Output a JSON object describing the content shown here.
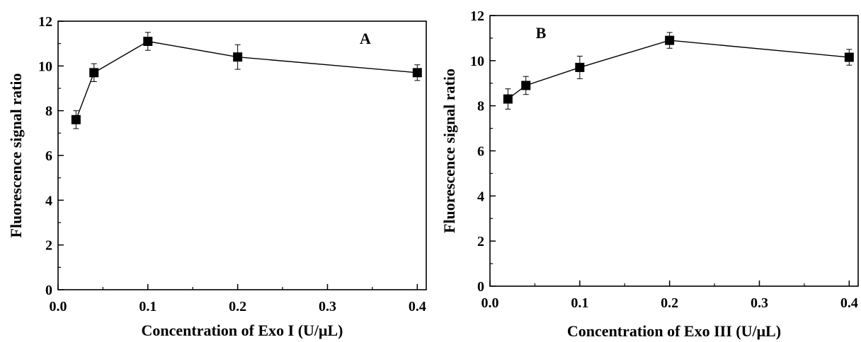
{
  "chart_data": [
    {
      "type": "line",
      "panel_label": "A",
      "xlabel": "Concentration of Exo I (U/μL)",
      "ylabel": "Fluorescence signal ratio",
      "xlim": [
        0.0,
        0.41
      ],
      "ylim": [
        0,
        12
      ],
      "xticks": [
        0.0,
        0.1,
        0.2,
        0.3,
        0.4
      ],
      "xtick_labels": [
        "0.0",
        "0.1",
        "0.2",
        "0.3",
        "0.4"
      ],
      "yticks": [
        0,
        2,
        4,
        6,
        8,
        10,
        12
      ],
      "ytick_labels": [
        "0",
        "2",
        "4",
        "6",
        "8",
        "10",
        "12"
      ],
      "grid": false,
      "marker": "square",
      "series": [
        {
          "x": [
            0.02,
            0.04,
            0.1,
            0.2,
            0.4
          ],
          "y": [
            7.6,
            9.7,
            11.1,
            10.4,
            9.7
          ],
          "error": [
            0.4,
            0.4,
            0.4,
            0.55,
            0.35
          ]
        }
      ]
    },
    {
      "type": "line",
      "panel_label": "B",
      "xlabel": "Concentration of Exo III (U/μL)",
      "ylabel": "Fluorescence signal ratio",
      "xlim": [
        0.0,
        0.41
      ],
      "ylim": [
        0,
        12
      ],
      "xticks": [
        0.0,
        0.1,
        0.2,
        0.3,
        0.4
      ],
      "xtick_labels": [
        "0.0",
        "0.1",
        "0.2",
        "0.3",
        "0.4"
      ],
      "yticks": [
        0,
        2,
        4,
        6,
        8,
        10,
        12
      ],
      "ytick_labels": [
        "0",
        "2",
        "4",
        "6",
        "8",
        "10",
        "12"
      ],
      "grid": false,
      "marker": "square",
      "series": [
        {
          "x": [
            0.02,
            0.04,
            0.1,
            0.2,
            0.4
          ],
          "y": [
            8.3,
            8.9,
            9.7,
            10.9,
            10.15
          ],
          "error": [
            0.45,
            0.4,
            0.5,
            0.35,
            0.35
          ]
        }
      ]
    }
  ]
}
